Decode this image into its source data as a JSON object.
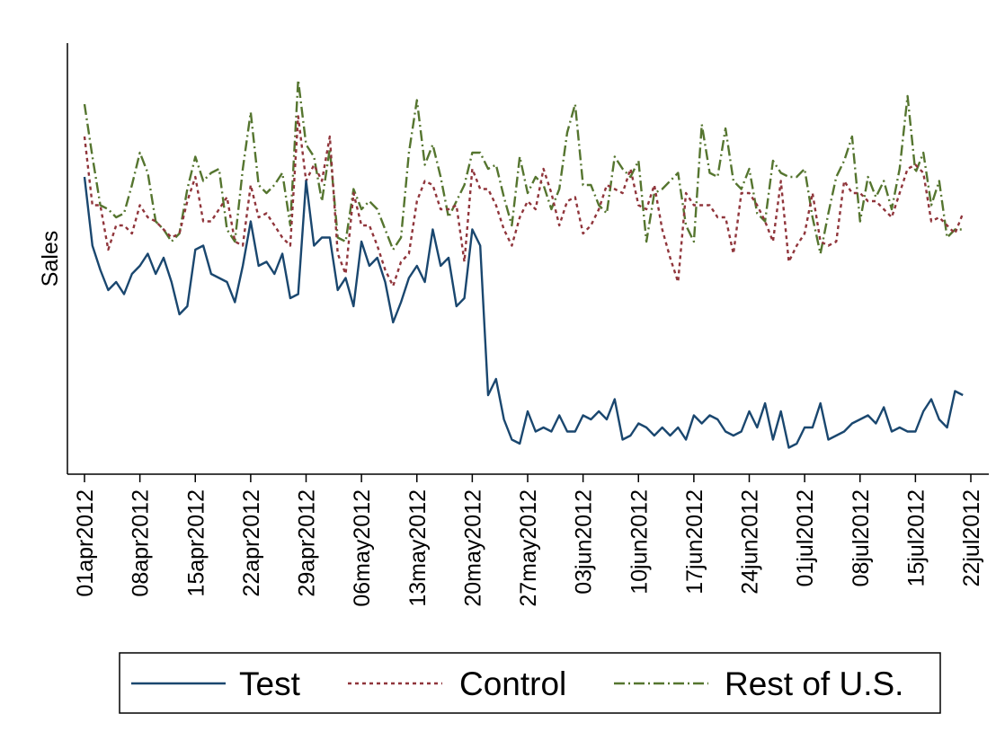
{
  "chart_data": {
    "type": "line",
    "title": "",
    "xlabel": "",
    "ylabel": "Sales",
    "y_ticks_shown": false,
    "grid": false,
    "legend_position": "bottom",
    "x_start": "2012-04-01",
    "x_ticks": [
      "01apr2012",
      "08apr2012",
      "15apr2012",
      "22apr2012",
      "29apr2012",
      "06may2012",
      "13may2012",
      "20may2012",
      "27may2012",
      "03jun2012",
      "10jun2012",
      "17jun2012",
      "24jun2012",
      "01jul2012",
      "08jul2012",
      "15jul2012",
      "22jul2012"
    ],
    "xlim": [
      "2012-04-01",
      "2012-07-22"
    ],
    "ylim": [
      0,
      100
    ],
    "series": [
      {
        "name": "Test",
        "color": "#1a476f",
        "dash": "solid",
        "values": [
          70,
          53,
          47,
          42,
          44,
          41,
          46,
          48,
          51,
          46,
          50,
          44,
          36,
          38,
          52,
          53,
          46,
          45,
          44,
          39,
          48,
          59,
          48,
          49,
          46,
          51,
          40,
          41,
          69,
          53,
          55,
          55,
          42,
          45,
          38,
          54,
          48,
          50,
          44,
          34,
          39,
          45,
          48,
          44,
          57,
          48,
          50,
          38,
          40,
          57,
          53,
          16,
          20,
          10,
          5,
          4,
          12,
          7,
          8,
          7,
          11,
          7,
          7,
          11,
          10,
          12,
          10,
          15,
          5,
          6,
          9,
          8,
          6,
          8,
          6,
          8,
          5,
          11,
          9,
          11,
          10,
          7,
          6,
          7,
          12,
          8,
          14,
          5,
          12,
          3,
          4,
          8,
          8,
          14,
          5,
          6,
          7,
          9,
          10,
          11,
          9,
          13,
          7,
          8,
          7,
          7,
          12,
          15,
          10,
          8,
          17,
          16
        ],
        "x": [
          0,
          1,
          2,
          3,
          4,
          5,
          6,
          7,
          8,
          9,
          10,
          11,
          12,
          13,
          14,
          15,
          16,
          17,
          18,
          19,
          20,
          21,
          22,
          23,
          24,
          25,
          26,
          27,
          28,
          29,
          30,
          31,
          32,
          33,
          34,
          35,
          36,
          37,
          38,
          39,
          40,
          41,
          42,
          43,
          44,
          45,
          46,
          47,
          48,
          49,
          50,
          51,
          52,
          53,
          54,
          55,
          56,
          57,
          58,
          59,
          60,
          61,
          62,
          63,
          64,
          65,
          66,
          67,
          68,
          69,
          70,
          71,
          72,
          73,
          74,
          75,
          76,
          77,
          78,
          79,
          80,
          81,
          82,
          83,
          84,
          85,
          86,
          87,
          88,
          89,
          90,
          91,
          92,
          93,
          94,
          95,
          96,
          97,
          98,
          99,
          100,
          101,
          102,
          103,
          104,
          105,
          106,
          107,
          108,
          109,
          110,
          111
        ]
      },
      {
        "name": "Control",
        "color": "#90353b",
        "dash": "dashed",
        "values": [
          80,
          63,
          63,
          52,
          58,
          58,
          56,
          63,
          60,
          59,
          57,
          55,
          56,
          64,
          70,
          59,
          59,
          62,
          65,
          54,
          53,
          68,
          60,
          61,
          58,
          55,
          53,
          85,
          69,
          73,
          69,
          80,
          51,
          46,
          66,
          58,
          58,
          53,
          47,
          43,
          49,
          51,
          64,
          69,
          68,
          62,
          62,
          63,
          49,
          72,
          67,
          67,
          63,
          57,
          53,
          60,
          64,
          62,
          72,
          66,
          58,
          64,
          65,
          56,
          58,
          62,
          68,
          67,
          66,
          72,
          63,
          62,
          68,
          57,
          50,
          44,
          66,
          63,
          63,
          63,
          60,
          60,
          51,
          66,
          66,
          63,
          59,
          54,
          69,
          49,
          53,
          56,
          66,
          54,
          53,
          54,
          69,
          66,
          66,
          64,
          64,
          62,
          60,
          66,
          72,
          73,
          71,
          59,
          60,
          58,
          56,
          61
        ]
      },
      {
        "name": "Rest of U.S.",
        "color": "#55752f",
        "dash": "dashdot",
        "values": [
          88,
          75,
          63,
          62,
          60,
          61,
          68,
          76,
          71,
          59,
          57,
          54,
          56,
          67,
          75,
          69,
          71,
          72,
          57,
          54,
          72,
          86,
          68,
          66,
          68,
          71,
          58,
          94,
          78,
          75,
          64,
          77,
          55,
          54,
          67,
          62,
          64,
          62,
          57,
          52,
          55,
          76,
          89,
          73,
          78,
          70,
          60,
          64,
          68,
          76,
          76,
          72,
          73,
          65,
          58,
          75,
          66,
          70,
          68,
          62,
          67,
          81,
          88,
          68,
          68,
          63,
          61,
          75,
          72,
          70,
          74,
          54,
          66,
          67,
          69,
          71,
          58,
          54,
          83,
          71,
          70,
          82,
          69,
          67,
          72,
          61,
          59,
          74,
          71,
          70,
          70,
          72,
          60,
          51,
          61,
          70,
          74,
          80,
          59,
          70,
          65,
          69,
          62,
          72,
          90,
          71,
          76,
          63,
          69,
          55,
          57,
          57
        ]
      }
    ]
  }
}
